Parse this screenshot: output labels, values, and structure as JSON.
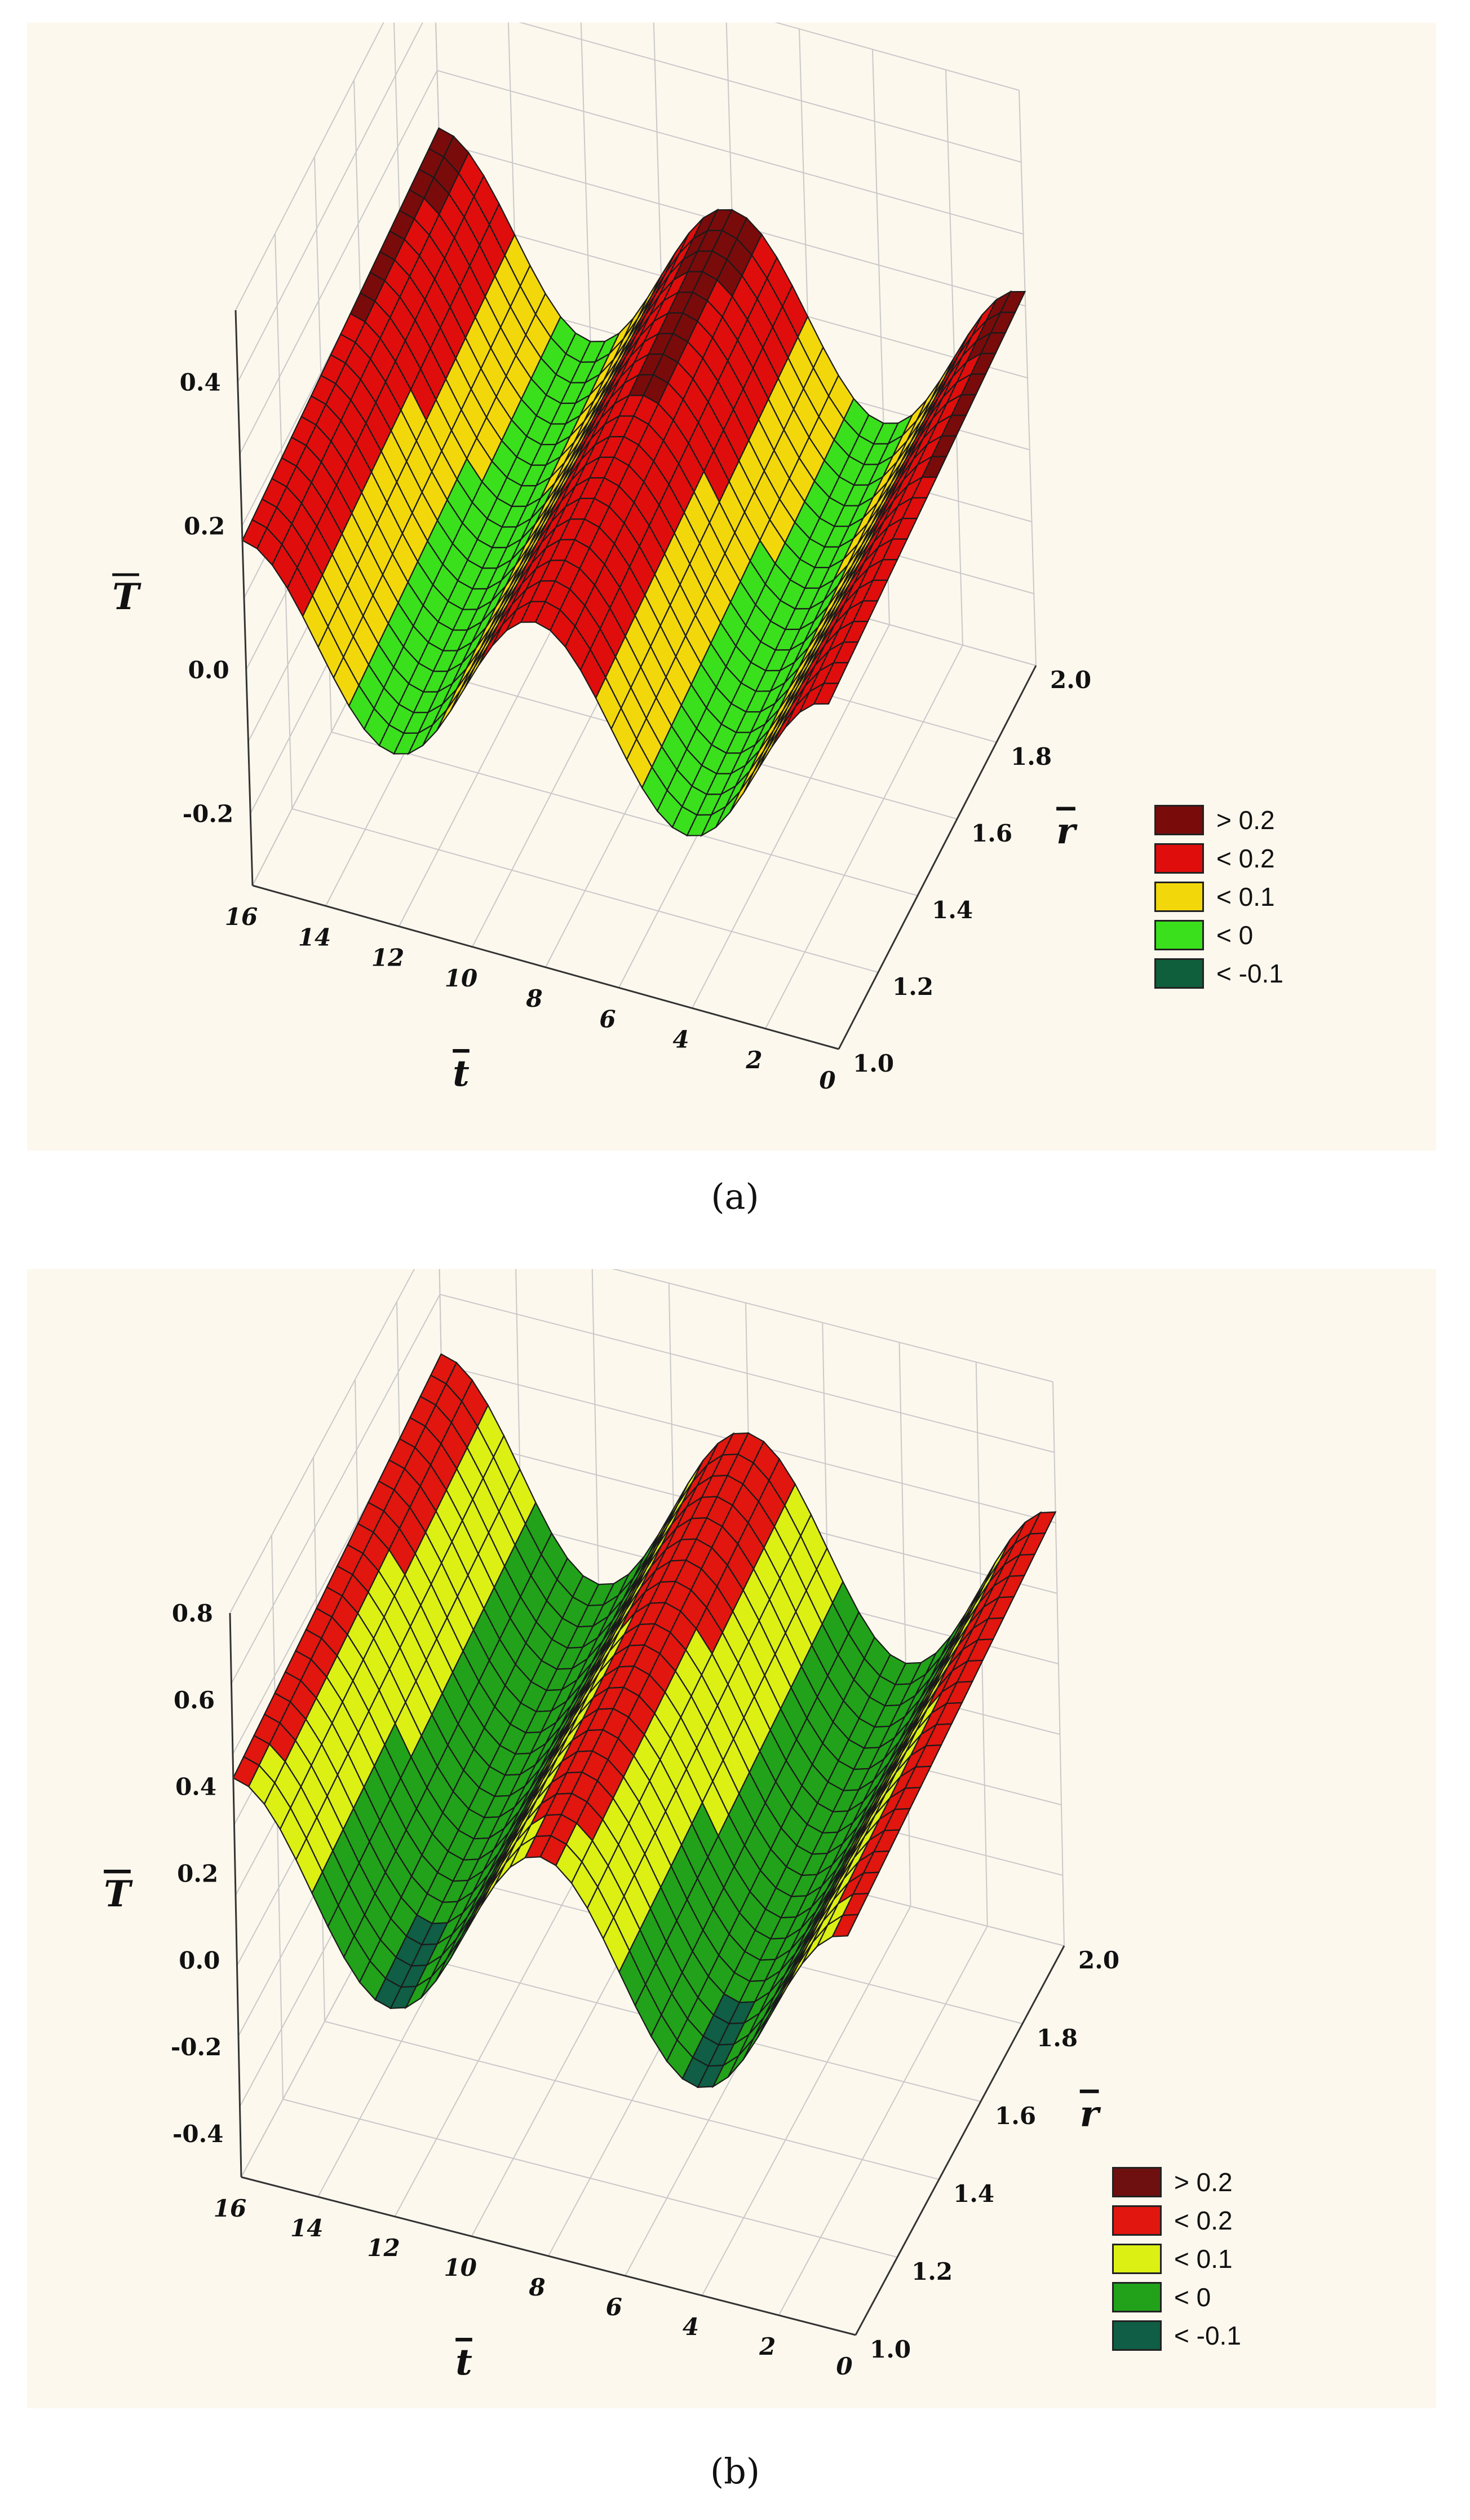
{
  "charts": [
    {
      "id": "a",
      "caption": "(a)",
      "chart_data": {
        "type": "surface",
        "x_label": "t",
        "y_label": "r",
        "z_label": "T",
        "x_range": [
          0,
          16
        ],
        "y_range": [
          1.0,
          2.0
        ],
        "z_range": [
          -0.3,
          0.5
        ],
        "x_ticks": [
          "0",
          "2",
          "4",
          "6",
          "8",
          "10",
          "12",
          "14",
          "16"
        ],
        "y_ticks": [
          "1.0",
          "1.2",
          "1.4",
          "1.6",
          "1.8",
          "2.0"
        ],
        "z_ticks": [
          "-0.2",
          "0.0",
          "0.2",
          "0.4"
        ],
        "surface": {
          "base": 0.06,
          "amplitude": 0.12,
          "r_slope": 0.04,
          "period": 8,
          "phase": 0
        },
        "legend": [
          {
            "label": "> 0.2",
            "color": "#7a0b0b"
          },
          {
            "label": "< 0.2",
            "color": "#e00d0d"
          },
          {
            "label": "< 0.1",
            "color": "#f2d80a"
          },
          {
            "label": "< 0",
            "color": "#3ae01c"
          },
          {
            "label": "< -0.1",
            "color": "#0f5e3c"
          }
        ],
        "color_thresholds": [
          -0.1,
          0.0,
          0.1,
          0.2,
          0.3
        ]
      }
    },
    {
      "id": "b",
      "caption": "(b)",
      "chart_data": {
        "type": "surface",
        "x_label": "t",
        "y_label": "r",
        "z_label": "T",
        "x_range": [
          0,
          16
        ],
        "y_range": [
          1.0,
          2.0
        ],
        "z_range": [
          -0.5,
          0.8
        ],
        "x_ticks": [
          "0",
          "2",
          "4",
          "6",
          "8",
          "10",
          "12",
          "14",
          "16"
        ],
        "y_ticks": [
          "1.0",
          "1.2",
          "1.4",
          "1.6",
          "1.8",
          "2.0"
        ],
        "z_ticks": [
          "-0.4",
          "-0.2",
          "0.0",
          "0.2",
          "0.4",
          "0.6",
          "0.8"
        ],
        "surface": {
          "base": 0.2,
          "amplitude": 0.22,
          "r_slope": 0.08,
          "period": 8,
          "phase": 0
        },
        "legend": [
          {
            "label": "> 0.2",
            "color": "#6e1010"
          },
          {
            "label": "< 0.2",
            "color": "#e0160f"
          },
          {
            "label": "< 0.1",
            "color": "#dcf014"
          },
          {
            "label": "< 0",
            "color": "#21a21a"
          },
          {
            "label": "< -0.1",
            "color": "#0f5e45"
          }
        ],
        "color_thresholds": [
          0.0,
          0.2,
          0.4,
          0.5,
          0.6
        ]
      }
    }
  ]
}
